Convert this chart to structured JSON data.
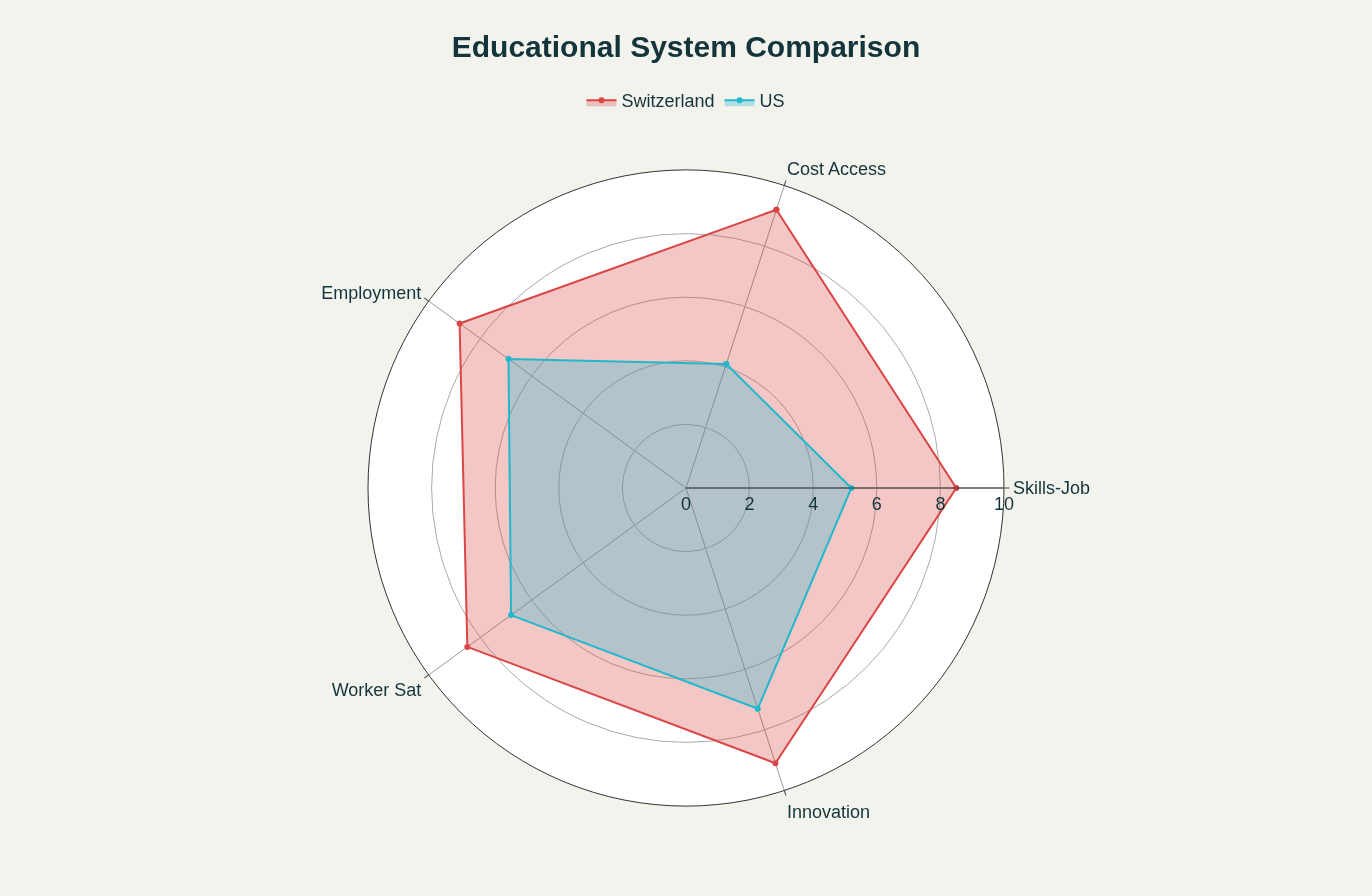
{
  "chart_data": {
    "type": "radar",
    "title": "Educational System Comparison",
    "categories": [
      "Cost Access",
      "Skills-Job",
      "Innovation",
      "Worker Sat",
      "Employment"
    ],
    "series": [
      {
        "name": "Switzerland",
        "color": "#db4545",
        "values": [
          9.2,
          8.5,
          9.1,
          8.5,
          8.8
        ]
      },
      {
        "name": "US",
        "color": "#1fb8cd",
        "values": [
          4.1,
          5.2,
          7.3,
          6.8,
          6.9
        ]
      }
    ],
    "ylim": [
      0,
      10
    ],
    "yticks": [
      0,
      2,
      4,
      6,
      8,
      10
    ],
    "grid": true,
    "legend": "top",
    "marker": "circle",
    "line_style": "solid"
  }
}
